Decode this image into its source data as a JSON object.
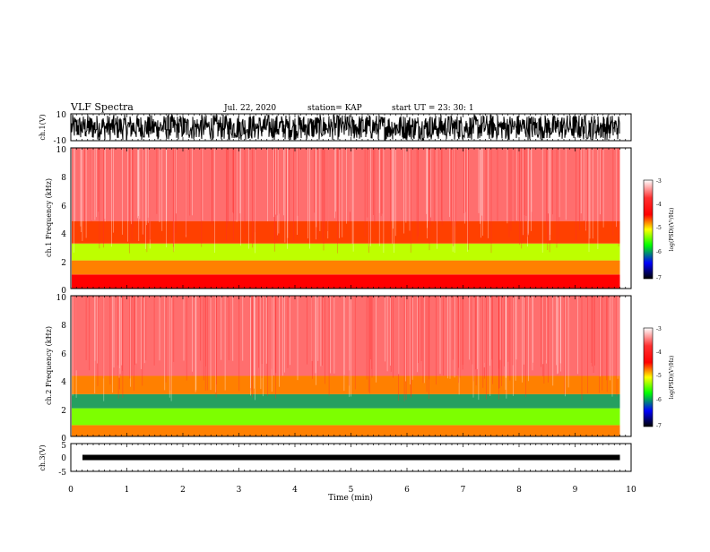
{
  "header": {
    "title": "VLF Spectra",
    "date": "Jul. 22, 2020",
    "station": "station= KAP",
    "start": "start UT =  23: 30: 1"
  },
  "colorbar": {
    "label": "log(PSD)(V²/Hz)",
    "ticks": [
      "-3",
      "-4",
      "-5",
      "-6",
      "-7"
    ],
    "colors": [
      "#ffffff",
      "#ff0000",
      "#ffff00",
      "#00ff00",
      "#0000ff",
      "#000000"
    ]
  },
  "chart_data": [
    {
      "type": "line",
      "ylabel": "ch.1(V)",
      "ylim": [
        -10,
        10
      ],
      "yticks": [
        "10",
        "-10"
      ],
      "x_range": [
        0,
        9.8
      ],
      "description_of_signal": "noise"
    },
    {
      "type": "heatmap",
      "ylabel": "ch.1 Frequency (kHz)",
      "ylim": [
        0,
        10
      ],
      "yticks": [
        "10",
        "8",
        "6",
        "4",
        "2",
        "0"
      ],
      "bands": [
        {
          "f_low": 0,
          "f_high": 1.0,
          "level": -4.2
        },
        {
          "f_low": 1.0,
          "f_high": 2.0,
          "level": -4.4
        },
        {
          "f_low": 2.0,
          "f_high": 3.2,
          "level": -4.8
        },
        {
          "f_low": 3.2,
          "f_high": 4.8,
          "level": -4.3
        },
        {
          "f_low": 4.8,
          "f_high": 10,
          "level": -3.6
        }
      ]
    },
    {
      "type": "heatmap",
      "ylabel": "ch.2 Frequency (kHz)",
      "ylim": [
        0,
        10
      ],
      "yticks": [
        "10",
        "8",
        "6",
        "4",
        "2",
        "0"
      ],
      "bands": [
        {
          "f_low": 0,
          "f_high": 0.8,
          "level": -4.4
        },
        {
          "f_low": 0.8,
          "f_high": 2.0,
          "level": -5.0
        },
        {
          "f_low": 2.0,
          "f_high": 3.0,
          "level": -5.5
        },
        {
          "f_low": 3.0,
          "f_high": 4.3,
          "level": -4.4
        },
        {
          "f_low": 4.3,
          "f_high": 10,
          "level": -3.6
        }
      ]
    },
    {
      "type": "line",
      "ylabel": "ch.3(V)",
      "ylim": [
        -5,
        5
      ],
      "yticks": [
        "5",
        "0",
        "-5"
      ],
      "x_range": [
        0,
        9.8
      ],
      "value": 0
    }
  ],
  "xaxis": {
    "label": "Time (min)",
    "ticks": [
      "0",
      "1",
      "2",
      "3",
      "4",
      "5",
      "6",
      "7",
      "8",
      "9",
      "10"
    ],
    "xlim": [
      0,
      10
    ]
  }
}
